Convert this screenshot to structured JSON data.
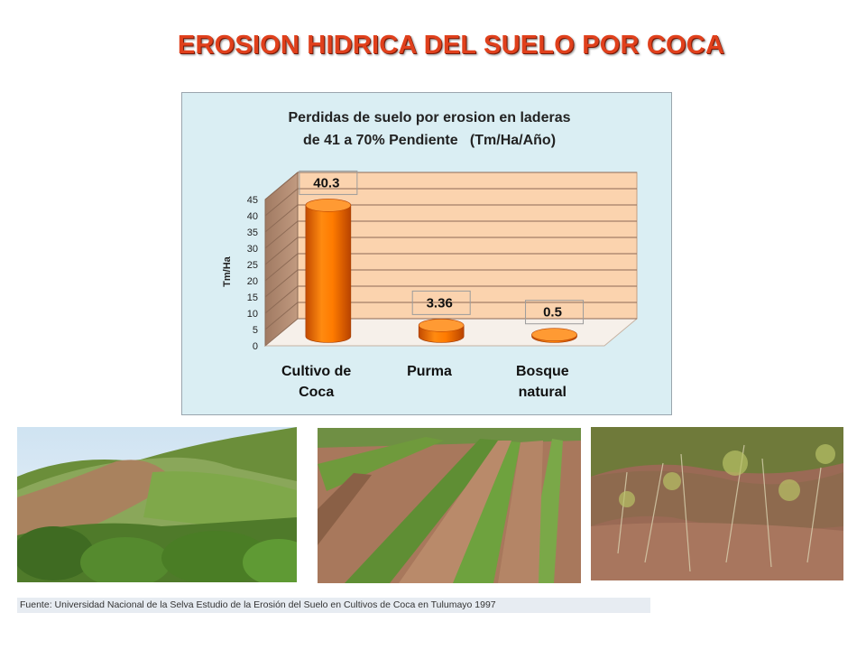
{
  "slide": {
    "title": "EROSION HIDRICA DEL SUELO POR COCA",
    "source": "Fuente: Universidad Nacional de la Selva Estudio de la Erosión del Suelo en Cultivos de Coca en Tulumayo 1997"
  },
  "chart_data": {
    "type": "bar",
    "title_lines": [
      "Perdidas de suelo por erosion en laderas",
      "de 41 a 70% Pendiente   (Tm/Ha/Año)"
    ],
    "ylabel": "Tm/Ha",
    "ylim": [
      0,
      45
    ],
    "yticks": [
      "0",
      "5",
      "10",
      "15",
      "20",
      "25",
      "30",
      "35",
      "40",
      "45"
    ],
    "categories": [
      [
        "Cultivo de",
        "Coca"
      ],
      [
        "Purma"
      ],
      [
        "Bosque",
        "natural"
      ]
    ],
    "values": [
      40.3,
      3.36,
      0.5
    ],
    "data_labels": [
      "40.3",
      "3.36",
      "0.5"
    ],
    "bar_shape": "cylinder",
    "grid": true,
    "legend": "none",
    "colors": {
      "bar": "#ff7b00",
      "wall": "#fbd3ae",
      "floor": "#fbd3ae",
      "panel_bg": "#daeef3",
      "grid": "#8c6a55"
    }
  }
}
